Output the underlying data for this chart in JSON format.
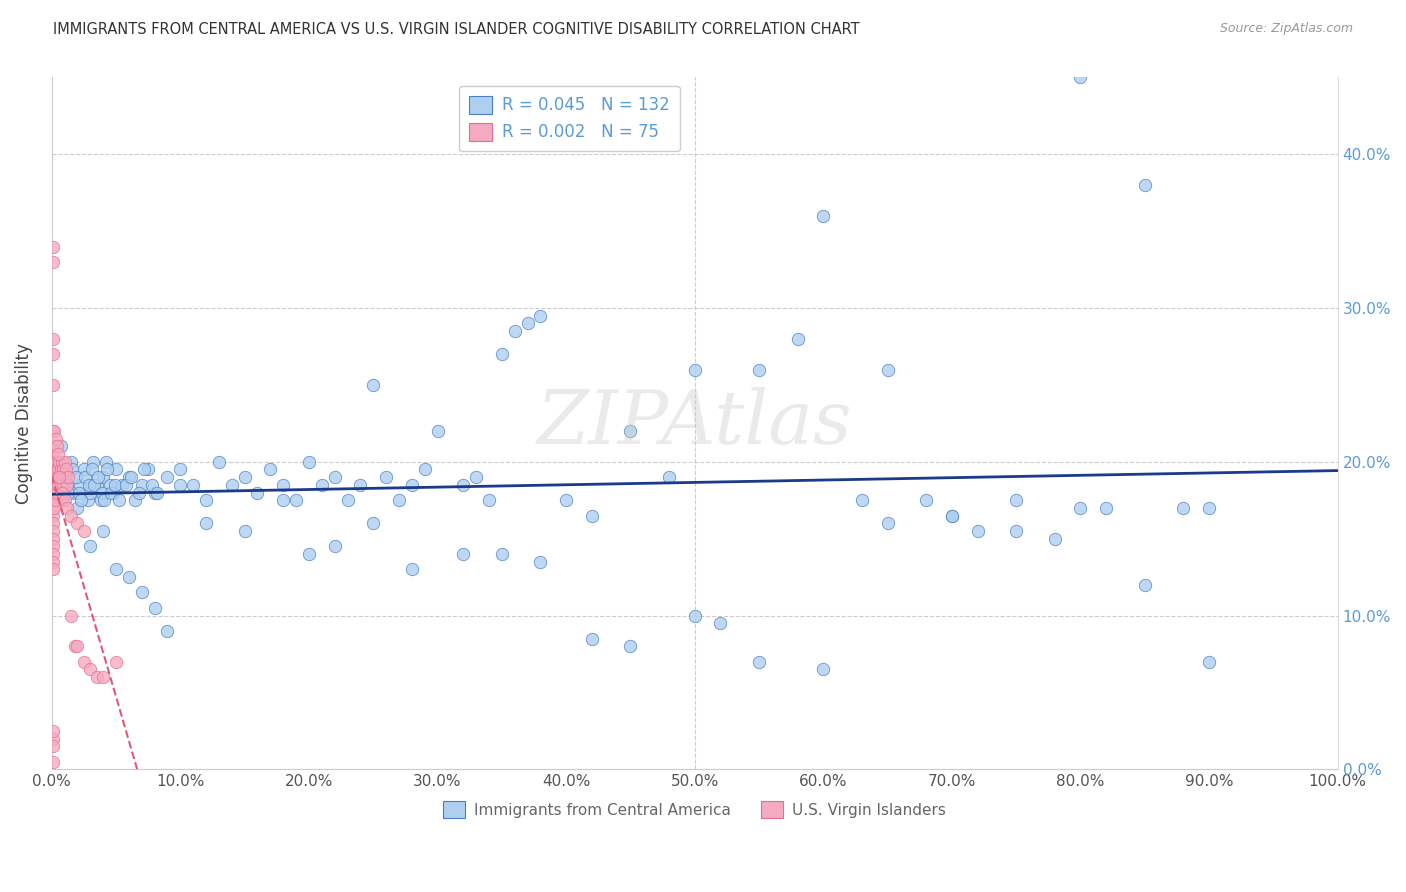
{
  "title": "IMMIGRANTS FROM CENTRAL AMERICA VS U.S. VIRGIN ISLANDER COGNITIVE DISABILITY CORRELATION CHART",
  "source": "Source: ZipAtlas.com",
  "ylabel": "Cognitive Disability",
  "legend_blue_label": "Immigrants from Central America",
  "legend_pink_label": "U.S. Virgin Islanders",
  "blue_R": 0.045,
  "blue_N": 132,
  "pink_R": 0.002,
  "pink_N": 75,
  "xlim": [
    0.0,
    1.0
  ],
  "ylim": [
    0.0,
    0.45
  ],
  "yticks": [
    0.0,
    0.1,
    0.2,
    0.3,
    0.4
  ],
  "xticks": [
    0.0,
    0.1,
    0.2,
    0.3,
    0.4,
    0.5,
    0.6,
    0.7,
    0.8,
    0.9,
    1.0
  ],
  "blue_color": "#aecff0",
  "blue_edge_color": "#4a7fc1",
  "blue_line_color": "#1a3a8a",
  "pink_color": "#f5aac0",
  "pink_edge_color": "#e07090",
  "pink_line_color": "#e05878",
  "watermark": "ZIPAtlas",
  "background_color": "#ffffff",
  "blue_scatter_x": [
    0.005,
    0.008,
    0.01,
    0.012,
    0.015,
    0.018,
    0.02,
    0.022,
    0.025,
    0.028,
    0.03,
    0.032,
    0.035,
    0.038,
    0.04,
    0.042,
    0.045,
    0.048,
    0.05,
    0.055,
    0.06,
    0.065,
    0.07,
    0.075,
    0.08,
    0.09,
    0.1,
    0.11,
    0.12,
    0.13,
    0.14,
    0.15,
    0.16,
    0.17,
    0.18,
    0.19,
    0.2,
    0.21,
    0.22,
    0.23,
    0.24,
    0.25,
    0.26,
    0.27,
    0.28,
    0.29,
    0.3,
    0.32,
    0.33,
    0.34,
    0.35,
    0.36,
    0.37,
    0.38,
    0.4,
    0.42,
    0.45,
    0.48,
    0.5,
    0.52,
    0.55,
    0.58,
    0.6,
    0.63,
    0.65,
    0.68,
    0.7,
    0.72,
    0.75,
    0.78,
    0.8,
    0.82,
    0.85,
    0.88,
    0.9,
    0.03,
    0.04,
    0.05,
    0.06,
    0.07,
    0.08,
    0.09,
    0.1,
    0.12,
    0.15,
    0.18,
    0.2,
    0.22,
    0.25,
    0.28,
    0.32,
    0.35,
    0.38,
    0.42,
    0.45,
    0.5,
    0.55,
    0.6,
    0.65,
    0.7,
    0.75,
    0.8,
    0.85,
    0.9,
    0.002,
    0.003,
    0.006,
    0.007,
    0.009,
    0.011,
    0.013,
    0.016,
    0.019,
    0.021,
    0.023,
    0.026,
    0.029,
    0.031,
    0.033,
    0.036,
    0.039,
    0.041,
    0.043,
    0.046,
    0.049,
    0.052,
    0.058,
    0.062,
    0.068,
    0.072,
    0.078,
    0.082
  ],
  "blue_scatter_y": [
    0.18,
    0.195,
    0.19,
    0.185,
    0.2,
    0.18,
    0.17,
    0.185,
    0.195,
    0.175,
    0.18,
    0.2,
    0.185,
    0.175,
    0.19,
    0.2,
    0.185,
    0.18,
    0.195,
    0.185,
    0.19,
    0.175,
    0.185,
    0.195,
    0.18,
    0.19,
    0.195,
    0.185,
    0.175,
    0.2,
    0.185,
    0.19,
    0.18,
    0.195,
    0.185,
    0.175,
    0.2,
    0.185,
    0.19,
    0.175,
    0.185,
    0.25,
    0.19,
    0.175,
    0.185,
    0.195,
    0.22,
    0.185,
    0.19,
    0.175,
    0.27,
    0.285,
    0.29,
    0.295,
    0.175,
    0.165,
    0.22,
    0.19,
    0.1,
    0.095,
    0.26,
    0.28,
    0.36,
    0.175,
    0.26,
    0.175,
    0.165,
    0.155,
    0.175,
    0.15,
    0.17,
    0.17,
    0.38,
    0.17,
    0.17,
    0.145,
    0.155,
    0.13,
    0.125,
    0.115,
    0.105,
    0.09,
    0.185,
    0.16,
    0.155,
    0.175,
    0.14,
    0.145,
    0.16,
    0.13,
    0.14,
    0.14,
    0.135,
    0.085,
    0.08,
    0.26,
    0.07,
    0.065,
    0.16,
    0.165,
    0.155,
    0.45,
    0.12,
    0.07,
    0.185,
    0.19,
    0.18,
    0.21,
    0.175,
    0.185,
    0.18,
    0.195,
    0.19,
    0.18,
    0.175,
    0.19,
    0.185,
    0.195,
    0.185,
    0.19,
    0.18,
    0.175,
    0.195,
    0.18,
    0.185,
    0.175,
    0.185,
    0.19,
    0.18,
    0.195,
    0.185,
    0.18
  ],
  "pink_scatter_x": [
    0.001,
    0.001,
    0.001,
    0.001,
    0.001,
    0.001,
    0.001,
    0.001,
    0.001,
    0.001,
    0.001,
    0.001,
    0.001,
    0.001,
    0.001,
    0.001,
    0.001,
    0.001,
    0.001,
    0.001,
    0.001,
    0.001,
    0.001,
    0.002,
    0.002,
    0.002,
    0.002,
    0.002,
    0.002,
    0.002,
    0.003,
    0.003,
    0.003,
    0.003,
    0.004,
    0.004,
    0.004,
    0.005,
    0.005,
    0.006,
    0.006,
    0.007,
    0.007,
    0.008,
    0.008,
    0.009,
    0.009,
    0.01,
    0.01,
    0.011,
    0.012,
    0.013,
    0.015,
    0.018,
    0.02,
    0.025,
    0.03,
    0.035,
    0.04,
    0.05,
    0.002,
    0.003,
    0.004,
    0.005,
    0.006,
    0.008,
    0.01,
    0.012,
    0.015,
    0.02,
    0.025,
    0.001,
    0.001,
    0.001,
    0.001
  ],
  "pink_scatter_y": [
    0.33,
    0.34,
    0.28,
    0.27,
    0.25,
    0.22,
    0.2,
    0.205,
    0.195,
    0.21,
    0.185,
    0.19,
    0.18,
    0.175,
    0.17,
    0.165,
    0.16,
    0.155,
    0.15,
    0.145,
    0.14,
    0.135,
    0.13,
    0.2,
    0.195,
    0.19,
    0.185,
    0.18,
    0.175,
    0.17,
    0.2,
    0.195,
    0.185,
    0.175,
    0.2,
    0.19,
    0.18,
    0.195,
    0.185,
    0.2,
    0.19,
    0.195,
    0.185,
    0.2,
    0.19,
    0.195,
    0.185,
    0.2,
    0.19,
    0.195,
    0.185,
    0.19,
    0.1,
    0.08,
    0.08,
    0.07,
    0.065,
    0.06,
    0.06,
    0.07,
    0.22,
    0.215,
    0.21,
    0.205,
    0.19,
    0.18,
    0.175,
    0.17,
    0.165,
    0.16,
    0.155,
    0.02,
    0.015,
    0.025,
    0.005
  ]
}
